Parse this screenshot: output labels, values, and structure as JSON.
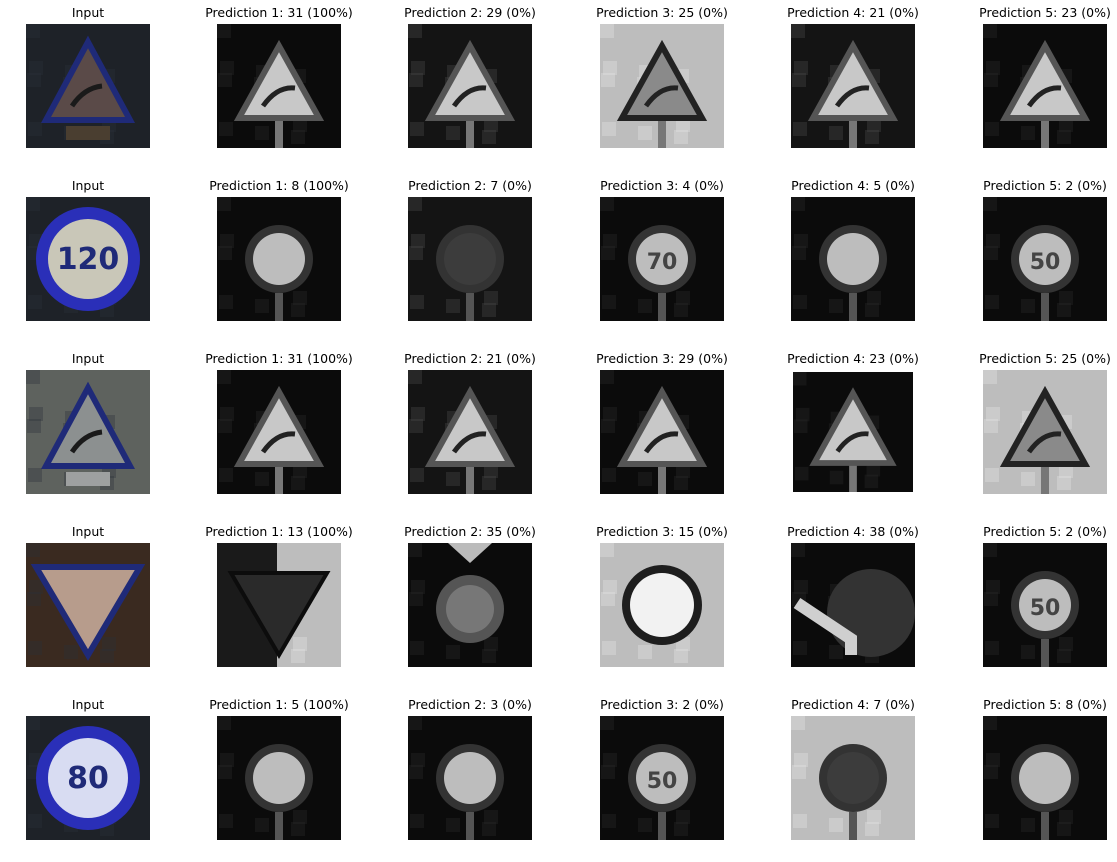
{
  "rows": [
    {
      "cells": [
        {
          "title": "Input",
          "kind": "input",
          "sign": "warn-curve"
        },
        {
          "title": "Prediction 1: 31 (100%)",
          "kind": "gray",
          "sign": "warn-curve",
          "tone": "dark"
        },
        {
          "title": "Prediction 2: 29 (0%)",
          "kind": "gray",
          "sign": "warn-bike",
          "tone": "mid"
        },
        {
          "title": "Prediction 3: 25 (0%)",
          "kind": "gray",
          "sign": "warn-work",
          "tone": "light"
        },
        {
          "title": "Prediction 4: 21 (0%)",
          "kind": "gray",
          "sign": "warn-double",
          "tone": "mid"
        },
        {
          "title": "Prediction 5: 23 (0%)",
          "kind": "gray",
          "sign": "warn-slip",
          "tone": "dark"
        }
      ]
    },
    {
      "cells": [
        {
          "title": "Input",
          "kind": "input",
          "sign": "speed-120"
        },
        {
          "title": "Prediction 1: 8 (100%)",
          "kind": "gray",
          "sign": "speed",
          "tone": "dark"
        },
        {
          "title": "Prediction 2: 7 (0%)",
          "kind": "gray",
          "sign": "speed-dark",
          "tone": "mid"
        },
        {
          "title": "Prediction 3: 4 (0%)",
          "kind": "gray",
          "sign": "speed-70",
          "tone": "dark"
        },
        {
          "title": "Prediction 4: 5 (0%)",
          "kind": "gray",
          "sign": "speed",
          "tone": "dark"
        },
        {
          "title": "Prediction 5: 2 (0%)",
          "kind": "gray",
          "sign": "speed-50",
          "tone": "dark"
        }
      ]
    },
    {
      "cells": [
        {
          "title": "Input",
          "kind": "input",
          "sign": "warn-curve-gray"
        },
        {
          "title": "Prediction 1: 31 (100%)",
          "kind": "gray",
          "sign": "warn-curve",
          "tone": "dark"
        },
        {
          "title": "Prediction 2: 21 (0%)",
          "kind": "gray",
          "sign": "warn-double",
          "tone": "mid"
        },
        {
          "title": "Prediction 3: 29 (0%)",
          "kind": "gray",
          "sign": "warn-bike",
          "tone": "dark"
        },
        {
          "title": "Prediction 4: 23 (0%)",
          "kind": "gray",
          "sign": "warn-slip",
          "tone": "dark"
        },
        {
          "title": "Prediction 5: 25 (0%)",
          "kind": "gray",
          "sign": "warn-work",
          "tone": "light"
        }
      ]
    },
    {
      "cells": [
        {
          "title": "Input",
          "kind": "input",
          "sign": "yield"
        },
        {
          "title": "Prediction 1: 13 (100%)",
          "kind": "gray",
          "sign": "yield",
          "tone": "light"
        },
        {
          "title": "Prediction 2: 35 (0%)",
          "kind": "gray",
          "sign": "ahead",
          "tone": "dark"
        },
        {
          "title": "Prediction 3: 15 (0%)",
          "kind": "gray",
          "sign": "novehicle",
          "tone": "light"
        },
        {
          "title": "Prediction 4: 38 (0%)",
          "kind": "gray",
          "sign": "keepright",
          "tone": "dark"
        },
        {
          "title": "Prediction 5: 2 (0%)",
          "kind": "gray",
          "sign": "speed-50",
          "tone": "dark"
        }
      ]
    },
    {
      "cells": [
        {
          "title": "Input",
          "kind": "input",
          "sign": "speed-80"
        },
        {
          "title": "Prediction 1: 5 (100%)",
          "kind": "gray",
          "sign": "speed",
          "tone": "dark"
        },
        {
          "title": "Prediction 2: 3 (0%)",
          "kind": "gray",
          "sign": "speed",
          "tone": "dark"
        },
        {
          "title": "Prediction 3: 2 (0%)",
          "kind": "gray",
          "sign": "speed-50",
          "tone": "dark"
        },
        {
          "title": "Prediction 4: 7 (0%)",
          "kind": "gray",
          "sign": "speed-dark",
          "tone": "light"
        },
        {
          "title": "Prediction 5: 8 (0%)",
          "kind": "gray",
          "sign": "speed",
          "tone": "dark"
        }
      ]
    }
  ],
  "sign_text": {
    "speed-120": "120",
    "speed-80": "80",
    "speed-70": "70",
    "speed-50": "50"
  }
}
